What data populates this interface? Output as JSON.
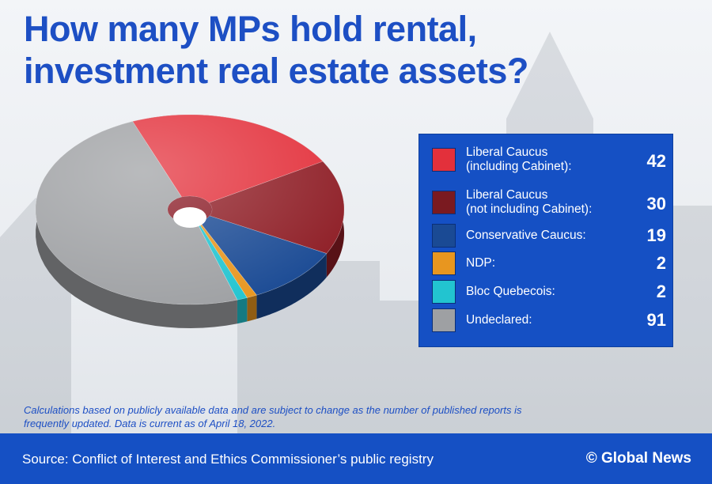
{
  "title": {
    "line1": "How many MPs hold rental,",
    "line2": "investment real estate assets?"
  },
  "chart_data": {
    "type": "pie",
    "categories": [
      "Liberal Caucus (including Cabinet):",
      "Liberal Caucus (not including Cabinet):",
      "Conservative Caucus:",
      "NDP:",
      "Bloc Quebecois:",
      "Undeclared:"
    ],
    "values": [
      42,
      30,
      19,
      2,
      2,
      91
    ],
    "colors": [
      "#e3303b",
      "#8e1d25",
      "#1a4a94",
      "#e8961f",
      "#22c4d0",
      "#9ea0a3"
    ],
    "legend_placement": "right"
  },
  "legend": {
    "items": [
      {
        "label_line1": "Liberal Caucus",
        "label_line2": "(including Cabinet):",
        "value": "42",
        "color": "#e3303b"
      },
      {
        "label_line1": "Liberal Caucus",
        "label_line2": "(not including Cabinet):",
        "value": "30",
        "color": "#7a1a20"
      },
      {
        "label_line1": "Conservative Caucus:",
        "label_line2": "",
        "value": "19",
        "color": "#1a4a94"
      },
      {
        "label_line1": "NDP:",
        "label_line2": "",
        "value": "2",
        "color": "#e8961f"
      },
      {
        "label_line1": "Bloc Quebecois:",
        "label_line2": "",
        "value": "2",
        "color": "#22c4d0"
      },
      {
        "label_line1": "Undeclared:",
        "label_line2": "",
        "value": "91",
        "color": "#9ea0a3"
      }
    ]
  },
  "note": {
    "line1": "Calculations based on publicly available data and are subject to change as the number of published reports is",
    "line2": "frequently updated. Data is current as of April 18, 2022."
  },
  "footer": {
    "source": "Source: Conflict of Interest and Ethics Commissioner’s public registry",
    "brand": "© Global News"
  }
}
